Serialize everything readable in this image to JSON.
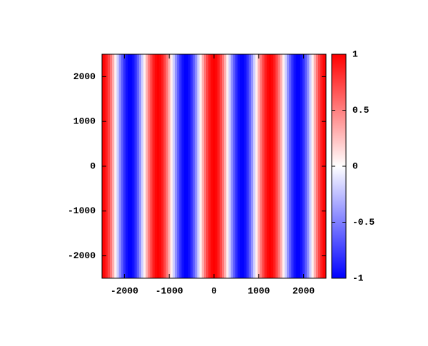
{
  "chart_data": {
    "type": "heatmap",
    "x": [
      -2500,
      -2450,
      -2400,
      -2350,
      -2300,
      -2250,
      -2200,
      -2150,
      -2100,
      -2050,
      -2000,
      -1950,
      -1900,
      -1850,
      -1800,
      -1750,
      -1700,
      -1650,
      -1600,
      -1550,
      -1500,
      -1450,
      -1400,
      -1350,
      -1300,
      -1250,
      -1200,
      -1150,
      -1100,
      -1050,
      -1000,
      -950,
      -900,
      -850,
      -800,
      -750,
      -700,
      -650,
      -600,
      -550,
      -500,
      -450,
      -400,
      -350,
      -300,
      -250,
      -200,
      -150,
      -100,
      -50,
      0,
      50,
      100,
      150,
      200,
      250,
      300,
      350,
      400,
      450,
      500,
      550,
      600,
      650,
      700,
      750,
      800,
      850,
      900,
      950,
      1000,
      1050,
      1100,
      1150,
      1200,
      1250,
      1300,
      1350,
      1400,
      1450,
      1500,
      1550,
      1600,
      1650,
      1700,
      1750,
      1800,
      1850,
      1900,
      1950,
      2000,
      2050,
      2100,
      2150,
      2200,
      2250,
      2300,
      2350,
      2400,
      2450,
      2500
    ],
    "values": [
      1,
      0.97,
      0.88,
      0.73,
      0.54,
      0.31,
      0.06,
      -0.19,
      -0.43,
      -0.64,
      -0.81,
      -0.93,
      -0.99,
      -0.99,
      -0.93,
      -0.81,
      -0.64,
      -0.43,
      -0.19,
      0.06,
      0.31,
      0.54,
      0.73,
      0.88,
      0.97,
      1,
      0.97,
      0.88,
      0.73,
      0.54,
      0.31,
      0.06,
      -0.19,
      -0.43,
      -0.64,
      -0.81,
      -0.93,
      -0.99,
      -0.99,
      -0.93,
      -0.81,
      -0.64,
      -0.43,
      -0.19,
      0.06,
      0.31,
      0.54,
      0.73,
      0.88,
      0.97,
      1,
      0.97,
      0.88,
      0.73,
      0.54,
      0.31,
      0.06,
      -0.19,
      -0.43,
      -0.64,
      -0.81,
      -0.93,
      -0.99,
      -0.99,
      -0.93,
      -0.81,
      -0.64,
      -0.43,
      -0.19,
      0.06,
      0.31,
      0.54,
      0.73,
      0.88,
      0.97,
      1,
      0.97,
      0.88,
      0.73,
      0.54,
      0.31,
      0.06,
      -0.19,
      -0.43,
      -0.64,
      -0.81,
      -0.93,
      -0.99,
      -0.99,
      -0.93,
      -0.81,
      -0.64,
      -0.43,
      -0.19,
      0.06,
      0.31,
      0.54,
      0.73,
      0.88,
      0.97,
      1
    ],
    "xlim": [
      -2500,
      2500
    ],
    "ylim": [
      -2500,
      2500
    ],
    "zlim": [
      -1,
      1
    ],
    "xticks": [
      -2000,
      -1000,
      0,
      1000,
      2000
    ],
    "yticks": [
      -2000,
      -1000,
      0,
      1000,
      2000
    ],
    "zticks": [
      -1,
      -0.5,
      0,
      0.5,
      1
    ],
    "colormap": [
      "#0000ff",
      "#ffffff",
      "#ff0000"
    ]
  }
}
